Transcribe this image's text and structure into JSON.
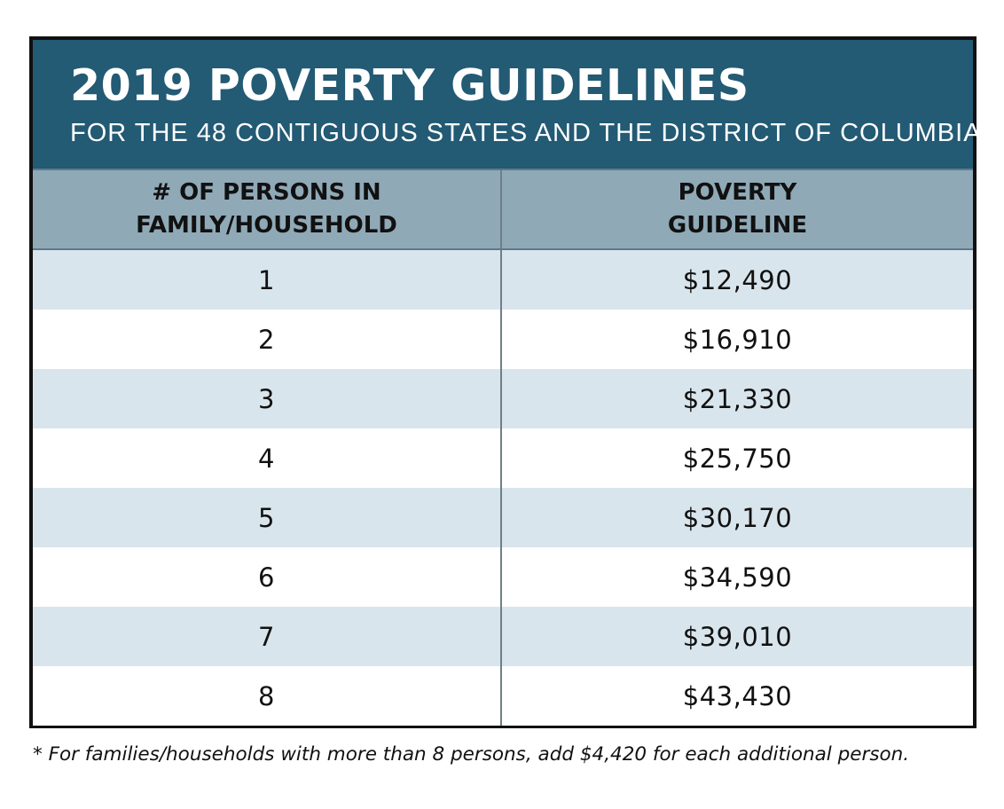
{
  "header": {
    "title": "2019 POVERTY GUIDELINES",
    "subtitle": "FOR THE 48 CONTIGUOUS STATES AND THE DISTRICT OF COLUMBIA"
  },
  "table": {
    "columns": [
      {
        "line1": "# OF PERSONS IN",
        "line2": "FAMILY/HOUSEHOLD"
      },
      {
        "line1": "POVERTY",
        "line2": "GUIDELINE"
      }
    ],
    "rows": [
      {
        "persons": "1",
        "guideline": "$12,490"
      },
      {
        "persons": "2",
        "guideline": "$16,910"
      },
      {
        "persons": "3",
        "guideline": "$21,330"
      },
      {
        "persons": "4",
        "guideline": "$25,750"
      },
      {
        "persons": "5",
        "guideline": "$30,170"
      },
      {
        "persons": "6",
        "guideline": "$34,590"
      },
      {
        "persons": "7",
        "guideline": "$39,010"
      },
      {
        "persons": "8",
        "guideline": "$43,430"
      }
    ]
  },
  "footnote": "* For families/households with more than 8 persons, add $4,420 for each additional person.",
  "colors": {
    "banner": "#235a74",
    "header_row": "#90a9b7",
    "row_shaded": "#d9e5ec",
    "row_plain": "#ffffff",
    "border": "#111111"
  }
}
